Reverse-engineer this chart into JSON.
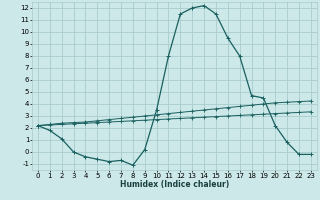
{
  "xlabel": "Humidex (Indice chaleur)",
  "bg_color": "#cce8e8",
  "grid_color": "#aacccc",
  "line_color": "#1a6060",
  "xlim": [
    -0.5,
    23.5
  ],
  "ylim": [
    -1.5,
    12.5
  ],
  "xticks": [
    0,
    1,
    2,
    3,
    4,
    5,
    6,
    7,
    8,
    9,
    10,
    11,
    12,
    13,
    14,
    15,
    16,
    17,
    18,
    19,
    20,
    21,
    22,
    23
  ],
  "yticks": [
    -1,
    0,
    1,
    2,
    3,
    4,
    5,
    6,
    7,
    8,
    9,
    10,
    11,
    12
  ],
  "curve1_x": [
    0,
    1,
    2,
    3,
    4,
    5,
    6,
    7,
    8,
    9,
    10,
    11,
    12,
    13,
    14,
    15,
    16,
    17,
    18,
    19,
    20,
    21,
    22,
    23
  ],
  "curve1_y": [
    2.2,
    1.8,
    1.1,
    0.0,
    -0.4,
    -0.6,
    -0.8,
    -0.7,
    -1.1,
    0.2,
    3.5,
    8.0,
    11.5,
    12.0,
    12.2,
    11.5,
    9.5,
    8.0,
    4.7,
    4.5,
    2.2,
    0.8,
    -0.2,
    -0.2
  ],
  "curve2_x": [
    0,
    1,
    2,
    3,
    4,
    5,
    6,
    7,
    8,
    9,
    10,
    11,
    12,
    13,
    14,
    15,
    16,
    17,
    18,
    19,
    20,
    21,
    22,
    23
  ],
  "curve2_y": [
    2.2,
    2.25,
    2.3,
    2.35,
    2.4,
    2.45,
    2.5,
    2.55,
    2.6,
    2.65,
    2.7,
    2.75,
    2.8,
    2.85,
    2.9,
    2.95,
    3.0,
    3.05,
    3.1,
    3.15,
    3.2,
    3.25,
    3.3,
    3.35
  ],
  "curve3_x": [
    0,
    1,
    2,
    3,
    4,
    5,
    6,
    7,
    8,
    9,
    10,
    11,
    12,
    13,
    14,
    15,
    16,
    17,
    18,
    19,
    20,
    21,
    22,
    23
  ],
  "curve3_y": [
    2.2,
    2.3,
    2.4,
    2.45,
    2.5,
    2.6,
    2.7,
    2.8,
    2.9,
    3.0,
    3.1,
    3.2,
    3.3,
    3.4,
    3.5,
    3.6,
    3.7,
    3.8,
    3.9,
    4.0,
    4.1,
    4.15,
    4.2,
    4.25
  ],
  "xlabel_fontsize": 5.5,
  "tick_fontsize": 5,
  "lw1": 0.9,
  "lw2": 0.7,
  "marker_size": 2.5
}
